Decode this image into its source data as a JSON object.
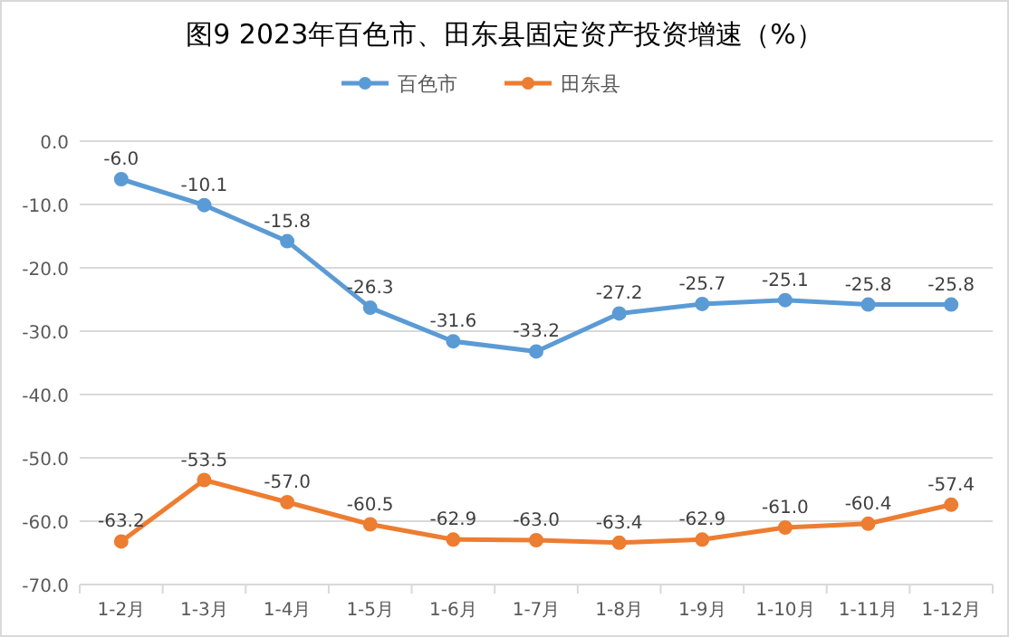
{
  "chart_data": {
    "type": "line",
    "title": "图9  2023年百色市、田东县固定资产投资增速（%）",
    "categories": [
      "1-2月",
      "1-3月",
      "1-4月",
      "1-5月",
      "1-6月",
      "1-7月",
      "1-8月",
      "1-9月",
      "1-10月",
      "1-11月",
      "1-12月"
    ],
    "series": [
      {
        "name": "百色市",
        "color": "#5b9bd5",
        "values": [
          -6.0,
          -10.1,
          -15.8,
          -26.3,
          -31.6,
          -33.2,
          -27.2,
          -25.7,
          -25.1,
          -25.8,
          -25.8
        ],
        "value_labels": [
          "-6.0",
          "-10.1",
          "-15.8",
          "-26.3",
          "-31.6",
          "-33.2",
          "-27.2",
          "-25.7",
          "-25.1",
          "-25.8",
          "-25.8"
        ]
      },
      {
        "name": "田东县",
        "color": "#ed7d31",
        "values": [
          -63.2,
          -53.5,
          -57.0,
          -60.5,
          -62.9,
          -63.0,
          -63.4,
          -62.9,
          -61.0,
          -60.4,
          -57.4
        ],
        "value_labels": [
          "-63.2",
          "-53.5",
          "-57.0",
          "-60.5",
          "-62.9",
          "-63.0",
          "-63.4",
          "-62.9",
          "-61.0",
          "-60.4",
          "-57.4"
        ]
      }
    ],
    "ylim": [
      -70,
      0
    ],
    "yticks": [
      {
        "value": 0,
        "label": "0.0"
      },
      {
        "value": -10,
        "label": "-10.0"
      },
      {
        "value": -20,
        "label": "-20.0"
      },
      {
        "value": -30,
        "label": "-30.0"
      },
      {
        "value": -40,
        "label": "-40.0"
      },
      {
        "value": -50,
        "label": "-50.0"
      },
      {
        "value": -60,
        "label": "-60.0"
      },
      {
        "value": -70,
        "label": "-70.0"
      }
    ],
    "grid": true,
    "legend": "top",
    "marker": "circle"
  }
}
